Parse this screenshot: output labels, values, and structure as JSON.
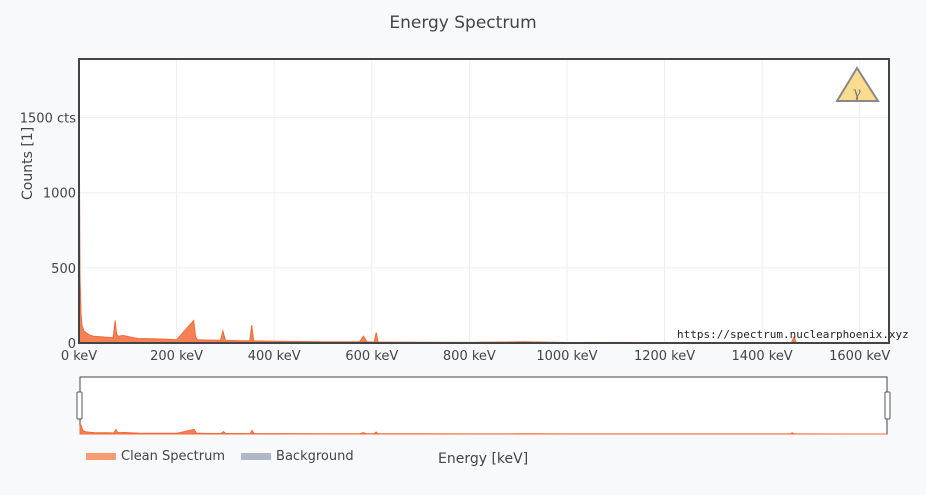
{
  "chart_data": {
    "type": "area",
    "title": "Energy Spectrum",
    "xlabel": "Energy [keV]",
    "ylabel": "Counts [1]",
    "xlim": [
      0,
      1660
    ],
    "ylim": [
      0,
      1890
    ],
    "x_ticks": [
      "0 keV",
      "200 keV",
      "400 keV",
      "600 keV",
      "800 keV",
      "1000 keV",
      "1200 keV",
      "1400 keV",
      "1600 keV"
    ],
    "x_tick_values": [
      0,
      200,
      400,
      600,
      800,
      1000,
      1200,
      1400,
      1600
    ],
    "y_ticks": [
      "0",
      "500",
      "1000",
      "1500 cts"
    ],
    "y_tick_values": [
      0,
      500,
      1000,
      1500
    ],
    "grid": true,
    "legend_position": "bottom-left",
    "series": [
      {
        "name": "Clean Spectrum",
        "color": "#f26b38",
        "x": [
          0,
          1,
          2,
          4,
          6,
          10,
          20,
          30,
          50,
          70,
          74,
          77,
          80,
          90,
          120,
          150,
          180,
          200,
          235,
          239,
          243,
          260,
          290,
          295,
          300,
          330,
          350,
          354,
          358,
          400,
          500,
          575,
          583,
          590,
          605,
          609,
          613,
          700,
          800,
          911,
          1000,
          1120,
          1200,
          1400,
          1460,
          1465,
          1470,
          1600,
          1660
        ],
        "y": [
          1800,
          1100,
          450,
          200,
          120,
          80,
          55,
          45,
          40,
          35,
          150,
          60,
          45,
          50,
          30,
          28,
          25,
          22,
          150,
          40,
          22,
          20,
          18,
          80,
          18,
          15,
          14,
          120,
          14,
          12,
          8,
          8,
          45,
          8,
          6,
          70,
          6,
          5,
          4,
          8,
          3,
          4,
          2,
          2,
          2,
          40,
          2,
          1,
          1
        ]
      },
      {
        "name": "Background",
        "color": "#b0b8c8",
        "x": [],
        "y": []
      }
    ]
  },
  "watermark": "https://spectrum.nuclearphoenix.xyz",
  "logo_icon": "gamma-warning-icon",
  "rangeslider": {
    "enabled": true
  }
}
